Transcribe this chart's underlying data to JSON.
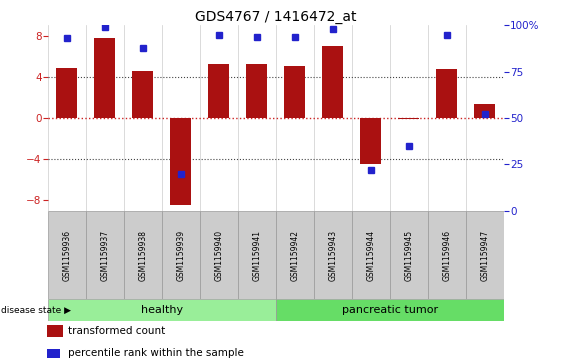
{
  "title": "GDS4767 / 1416472_at",
  "samples": [
    "GSM1159936",
    "GSM1159937",
    "GSM1159938",
    "GSM1159939",
    "GSM1159940",
    "GSM1159941",
    "GSM1159942",
    "GSM1159943",
    "GSM1159944",
    "GSM1159945",
    "GSM1159946",
    "GSM1159947"
  ],
  "transformed_count": [
    4.9,
    7.8,
    4.6,
    -8.5,
    5.2,
    5.2,
    5.1,
    7.0,
    -4.5,
    -0.1,
    4.8,
    1.4
  ],
  "percentile_rank": [
    93,
    99,
    88,
    20,
    95,
    94,
    94,
    98,
    22,
    35,
    95,
    52
  ],
  "ylim_left": [
    -9,
    9
  ],
  "ylim_right": [
    0,
    100
  ],
  "yticks_left": [
    -8,
    -4,
    0,
    4,
    8
  ],
  "yticks_right": [
    0,
    25,
    50,
    75,
    100
  ],
  "bar_color": "#aa1111",
  "dot_color": "#2222cc",
  "hline_color": "#cc2222",
  "dotted_color": "#444444",
  "group_labels": [
    "healthy",
    "pancreatic tumor"
  ],
  "group_colors": [
    "#99ee99",
    "#66dd66"
  ],
  "disease_state_label": "disease state",
  "legend_items": [
    "transformed count",
    "percentile rank within the sample"
  ],
  "tick_label_color_left": "#cc2222",
  "tick_label_color_right": "#2222cc",
  "label_box_color": "#cccccc",
  "n_healthy": 6,
  "n_tumor": 6
}
